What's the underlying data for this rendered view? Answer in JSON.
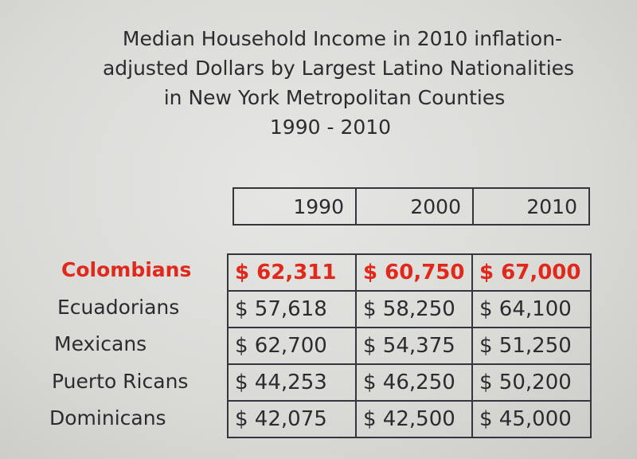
{
  "title": {
    "lines": [
      "Median Household Income in 2010 inflation-",
      "adjusted Dollars  by Largest Latino Nationalities",
      "in New York  Metropolitan Counties",
      "1990 - 2010"
    ]
  },
  "table": {
    "columns": [
      "1990",
      "2000",
      "2010"
    ],
    "rows": [
      {
        "label": "Colombians",
        "values": [
          "$  62,311",
          "$ 60,750",
          "$ 67,000"
        ],
        "highlight": true
      },
      {
        "label": "Ecuadorians",
        "values": [
          "$  57,618",
          "$ 58,250",
          "$ 64,100"
        ]
      },
      {
        "label": "Mexicans",
        "values": [
          "$  62,700",
          "$ 54,375",
          "$ 51,250"
        ]
      },
      {
        "label": "Puerto Ricans",
        "values": [
          "$  44,253",
          "$ 46,250",
          "$ 50,200"
        ]
      },
      {
        "label": "Dominicans",
        "values": [
          "$  42,075",
          "$ 42,500",
          "$ 45,000"
        ]
      }
    ]
  },
  "colors": {
    "highlight": "#e0281c",
    "text": "#2c2c30",
    "background": "#dcddda"
  }
}
